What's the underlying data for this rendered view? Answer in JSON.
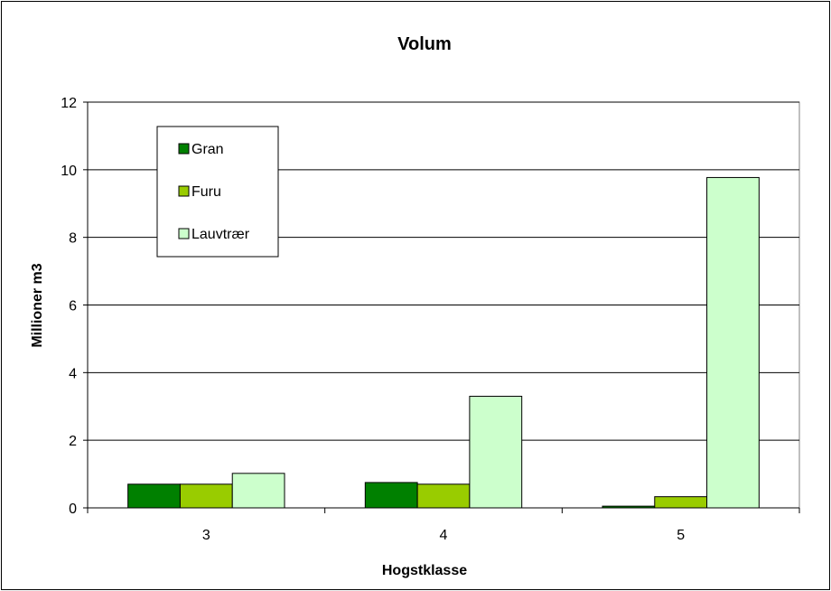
{
  "chart_data": {
    "type": "bar",
    "title": "Volum",
    "xlabel": "Hogstklasse",
    "ylabel": "Millioner m3",
    "categories": [
      "3",
      "4",
      "5"
    ],
    "ylim": [
      0,
      12
    ],
    "yticks": [
      0,
      2,
      4,
      6,
      8,
      10,
      12
    ],
    "grid": true,
    "legend_position": "top-left",
    "series": [
      {
        "name": "Gran",
        "color": "#008000",
        "values": [
          0.7,
          0.75,
          0.05
        ]
      },
      {
        "name": "Furu",
        "color": "#99cc00",
        "values": [
          0.7,
          0.7,
          0.33
        ]
      },
      {
        "name": "Lauvtrær",
        "color": "#ccffcc",
        "values": [
          1.02,
          3.3,
          9.77
        ]
      }
    ]
  }
}
